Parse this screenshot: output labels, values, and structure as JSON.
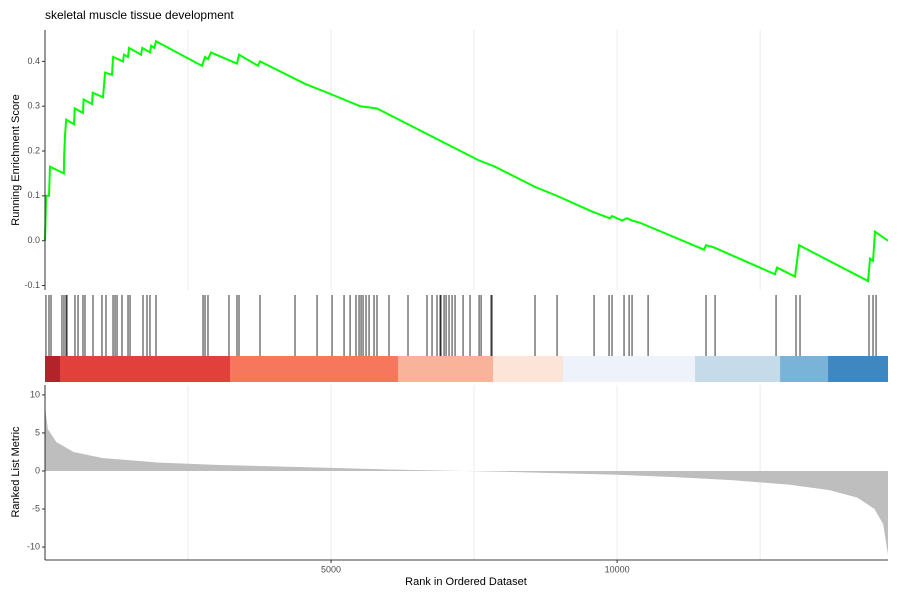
{
  "chart_data": [
    {
      "type": "line",
      "title": "skeletal muscle tissue development",
      "ylabel": "Running Enrichment Score",
      "color": "#00ff00",
      "x": [
        0,
        20,
        70,
        87,
        330,
        335,
        350,
        370,
        507,
        520,
        664,
        675,
        822,
        835,
        1014,
        1050,
        1171,
        1190,
        1363,
        1380,
        1451,
        1470,
        1678,
        1700,
        1835,
        1855,
        1910,
        1940,
        2744,
        2797,
        2849,
        2902,
        3356,
        3391,
        3723,
        3758,
        4545,
        5034,
        5506,
        5803,
        7569,
        7866,
        8565,
        8950,
        9562,
        9876,
        9911,
        10086,
        10174,
        10261,
        10400,
        11520,
        11554,
        11694,
        12760,
        12795,
        13110,
        13180,
        14386,
        14421,
        14473,
        14508,
        14735
      ],
      "values": [
        0,
        0.1,
        0.1,
        0.165,
        0.15,
        0.19,
        0.235,
        0.27,
        0.26,
        0.295,
        0.285,
        0.315,
        0.305,
        0.33,
        0.32,
        0.375,
        0.37,
        0.41,
        0.4,
        0.415,
        0.41,
        0.43,
        0.415,
        0.43,
        0.42,
        0.435,
        0.43,
        0.445,
        0.39,
        0.41,
        0.405,
        0.42,
        0.395,
        0.415,
        0.39,
        0.4,
        0.35,
        0.325,
        0.3,
        0.295,
        0.18,
        0.165,
        0.12,
        0.1,
        0.065,
        0.05,
        0.055,
        0.045,
        0.05,
        0.045,
        0.04,
        -0.02,
        -0.01,
        -0.015,
        -0.075,
        -0.06,
        -0.08,
        -0.01,
        -0.09,
        -0.04,
        -0.045,
        0.02,
        0
      ],
      "xlim": [
        0,
        14735
      ],
      "ylim": [
        -0.11,
        0.47
      ],
      "yticks": [
        -0.1,
        {
          "value": 0,
          "label": "0.0"
        },
        0.1,
        0.2,
        0.3,
        0.4
      ],
      "xgrid": [
        2500,
        5000,
        7500,
        10000,
        12500
      ]
    },
    {
      "type": "rug",
      "color": "#000000",
      "xlim": [
        0,
        14735
      ],
      "hits": [
        17,
        70,
        105,
        297,
        332,
        367,
        385,
        524,
        577,
        664,
        699,
        839,
        996,
        1066,
        1189,
        1224,
        1259,
        1346,
        1451,
        1486,
        1713,
        1783,
        1835,
        1940,
        2762,
        2797,
        2849,
        3216,
        3356,
        3391,
        3758,
        4370,
        4755,
        5017,
        5227,
        5332,
        5436,
        5489,
        5524,
        5559,
        5611,
        5664,
        5751,
        5803,
        6013,
        6345,
        6677,
        6765,
        6852,
        6905,
        6922,
        6975,
        7010,
        7062,
        7115,
        7167,
        7307,
        7429,
        7587,
        7622,
        7796,
        7814,
        8565,
        8950,
        9597,
        9859,
        9911,
        10121,
        10209,
        10261,
        10541,
        11554,
        11712,
        12778,
        13127,
        13197,
        14403,
        14473,
        14526
      ],
      "bands": [
        {
          "start": 0,
          "end": 262,
          "color": "#b2232a"
        },
        {
          "start": 262,
          "end": 3234,
          "color": "#e2403a"
        },
        {
          "start": 3234,
          "end": 6170,
          "color": "#f6775c"
        },
        {
          "start": 6170,
          "end": 7831,
          "color": "#fab39b"
        },
        {
          "start": 7831,
          "end": 9055,
          "color": "#fde4d9"
        },
        {
          "start": 9055,
          "end": 11362,
          "color": "#eef2fb"
        },
        {
          "start": 11362,
          "end": 12848,
          "color": "#c5dbe9"
        },
        {
          "start": 12848,
          "end": 13687,
          "color": "#7ab3d8"
        },
        {
          "start": 13687,
          "end": 14735,
          "color": "#3f87c0"
        }
      ]
    },
    {
      "type": "area",
      "ylabel": "Ranked List Metric",
      "xlabel": "Rank in Ordered Dataset",
      "color": "#bebebe",
      "x": [
        0,
        50,
        200,
        500,
        1000,
        2000,
        3000,
        4000,
        5000,
        6000,
        7000,
        8000,
        9000,
        10000,
        11000,
        12000,
        13000,
        13700,
        14200,
        14500,
        14650,
        14735
      ],
      "values": [
        8.5,
        5.5,
        3.8,
        2.5,
        1.7,
        1.1,
        0.8,
        0.6,
        0.4,
        0.2,
        0.05,
        -0.1,
        -0.3,
        -0.5,
        -0.8,
        -1.2,
        -1.8,
        -2.5,
        -3.5,
        -5,
        -7,
        -11
      ],
      "xlim": [
        0,
        14735
      ],
      "ylim": [
        -11.7,
        11.3
      ],
      "yticks": [
        -10,
        -5,
        0,
        5,
        10
      ],
      "xticks": [
        5000,
        10000
      ],
      "xgrid": [
        2500,
        5000,
        7500,
        10000,
        12500
      ]
    }
  ]
}
